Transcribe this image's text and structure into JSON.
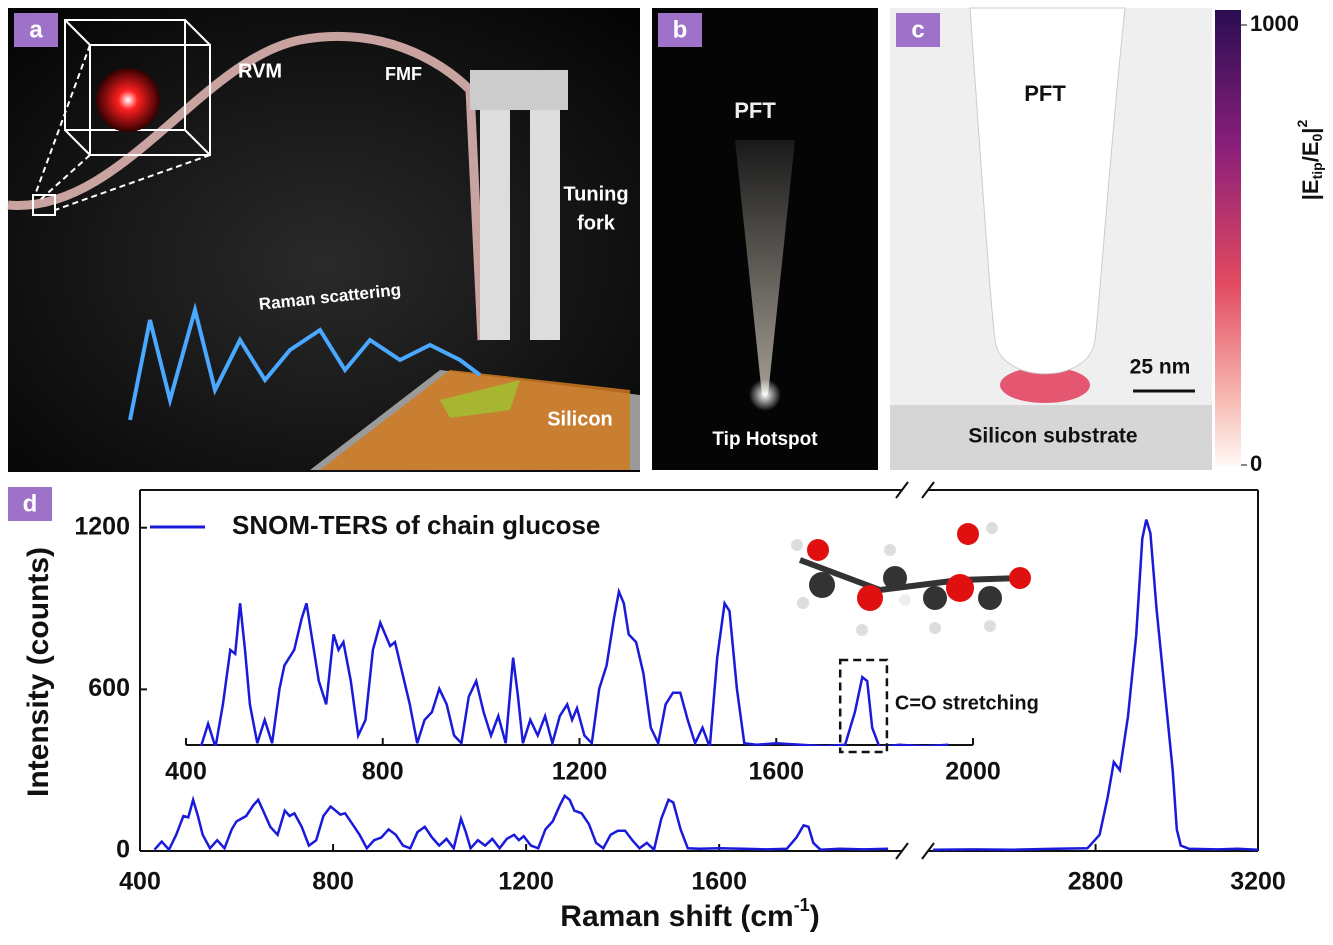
{
  "panels": {
    "a": {
      "label": "a",
      "texts": [
        "RVM",
        "FMF",
        "Tuning",
        "fork",
        "Raman scattering",
        "Silicon"
      ]
    },
    "b": {
      "label": "b",
      "texts": [
        "PFT",
        "Tip Hotspot"
      ]
    },
    "c": {
      "label": "c",
      "texts": [
        "PFT",
        "25 nm",
        "Silicon substrate"
      ],
      "colorbar": {
        "lim": [
          0,
          1000
        ],
        "ticks": [
          1000,
          0
        ],
        "label_parts": [
          "|E",
          "tip",
          "/E",
          "0",
          "|",
          "2"
        ]
      }
    },
    "d": {
      "label": "d"
    }
  },
  "chart_data": {
    "type": "line",
    "xlabel_parts": [
      "Raman shift (cm",
      "-1",
      ")"
    ],
    "ylabel": "Intensity (counts)",
    "xlim": [
      400,
      3200
    ],
    "x_break": [
      1985,
      2380
    ],
    "ylim": [
      0,
      1340
    ],
    "xticks": [
      400,
      800,
      1200,
      1600,
      2800,
      3200
    ],
    "yticks": [
      0,
      600,
      1200
    ],
    "x": [
      430,
      445,
      460,
      475,
      490,
      500,
      510,
      520,
      530,
      545,
      560,
      575,
      590,
      600,
      620,
      635,
      645,
      655,
      670,
      685,
      700,
      710,
      720,
      735,
      750,
      765,
      780,
      795,
      805,
      815,
      825,
      840,
      855,
      870,
      885,
      900,
      915,
      930,
      945,
      960,
      975,
      990,
      1005,
      1020,
      1035,
      1050,
      1065,
      1075,
      1085,
      1100,
      1115,
      1130,
      1145,
      1160,
      1175,
      1185,
      1195,
      1210,
      1225,
      1240,
      1255,
      1270,
      1280,
      1290,
      1300,
      1315,
      1330,
      1345,
      1360,
      1375,
      1390,
      1405,
      1420,
      1435,
      1450,
      1465,
      1480,
      1495,
      1505,
      1520,
      1535,
      1560,
      1600,
      1650,
      1700,
      1740,
      1760,
      1775,
      1785,
      1795,
      1810,
      1850,
      1900,
      1950,
      2200,
      2400,
      2500,
      2600,
      2700,
      2780,
      2810,
      2830,
      2845,
      2860,
      2880,
      2900,
      2915,
      2925,
      2935,
      2950,
      2970,
      2990,
      3000,
      3010,
      3030,
      3100,
      3150,
      3200
    ],
    "series": [
      {
        "name": "SNOM-TERS of chain glucose",
        "color": "#1a1adb",
        "values": [
          5,
          35,
          5,
          60,
          130,
          125,
          190,
          130,
          60,
          10,
          40,
          10,
          80,
          110,
          130,
          170,
          190,
          150,
          90,
          60,
          150,
          130,
          140,
          90,
          20,
          40,
          130,
          165,
          150,
          135,
          140,
          100,
          60,
          10,
          40,
          50,
          80,
          60,
          20,
          10,
          70,
          90,
          50,
          20,
          45,
          10,
          120,
          70,
          10,
          40,
          20,
          45,
          10,
          45,
          60,
          40,
          55,
          20,
          10,
          80,
          110,
          170,
          205,
          190,
          150,
          140,
          100,
          30,
          10,
          60,
          75,
          75,
          40,
          10,
          30,
          5,
          120,
          190,
          180,
          80,
          10,
          8,
          10,
          8,
          6,
          8,
          50,
          95,
          90,
          30,
          5,
          8,
          6,
          8,
          null,
          5,
          6,
          5,
          8,
          10,
          60,
          200,
          330,
          300,
          500,
          800,
          1160,
          1230,
          1180,
          900,
          600,
          300,
          80,
          20,
          8,
          6,
          8,
          5
        ]
      }
    ],
    "inset": {
      "xlim": [
        400,
        2000
      ],
      "ylim": [
        0,
        400
      ],
      "xticks": [
        400,
        800,
        1200,
        1600,
        2000
      ],
      "highlight": [
        1730,
        1825
      ],
      "annotation": "C=O stretching"
    }
  }
}
